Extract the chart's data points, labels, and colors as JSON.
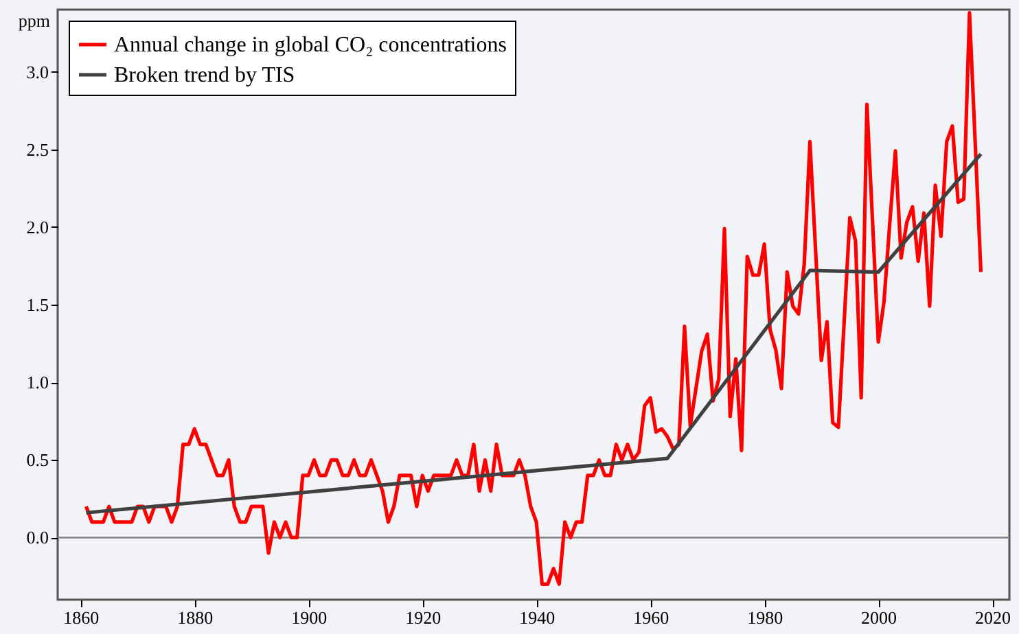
{
  "chart_data": {
    "type": "line",
    "ylabel": "ppm",
    "xlim": [
      1856,
      2023
    ],
    "ylim": [
      -0.4,
      3.4
    ],
    "xticks": [
      1860,
      1880,
      1900,
      1920,
      1940,
      1960,
      1980,
      2000,
      2020
    ],
    "yticks": [
      {
        "value": 0,
        "label": "0.0"
      },
      {
        "value": 0.5,
        "label": "0.5"
      },
      {
        "value": 1,
        "label": "1.0"
      },
      {
        "value": 1.5,
        "label": "1.5"
      },
      {
        "value": 2,
        "label": "2.0"
      },
      {
        "value": 2.5,
        "label": "2.5"
      },
      {
        "value": 3,
        "label": "3.0"
      }
    ],
    "grid": false,
    "legend": "top left",
    "line_style": "solid",
    "ref_lines": [
      {
        "axis": "y",
        "value": 0,
        "color": "#808080"
      }
    ],
    "series": [
      {
        "name": "Annual change in global CO₂ concentrations",
        "color": "#ff0000",
        "x": [
          1861,
          1862,
          1863,
          1864,
          1865,
          1866,
          1867,
          1868,
          1869,
          1870,
          1871,
          1872,
          1873,
          1874,
          1875,
          1876,
          1877,
          1878,
          1879,
          1880,
          1881,
          1882,
          1883,
          1884,
          1885,
          1886,
          1887,
          1888,
          1889,
          1890,
          1891,
          1892,
          1893,
          1894,
          1895,
          1896,
          1897,
          1898,
          1899,
          1900,
          1901,
          1902,
          1903,
          1904,
          1905,
          1906,
          1907,
          1908,
          1909,
          1910,
          1911,
          1912,
          1913,
          1914,
          1915,
          1916,
          1917,
          1918,
          1919,
          1920,
          1921,
          1922,
          1923,
          1924,
          1925,
          1926,
          1927,
          1928,
          1929,
          1930,
          1931,
          1932,
          1933,
          1934,
          1935,
          1936,
          1937,
          1938,
          1939,
          1940,
          1941,
          1942,
          1943,
          1944,
          1945,
          1946,
          1947,
          1948,
          1949,
          1950,
          1951,
          1952,
          1953,
          1954,
          1955,
          1956,
          1957,
          1958,
          1959,
          1960,
          1961,
          1962,
          1963,
          1964,
          1965,
          1966,
          1967,
          1969,
          1970,
          1971,
          1972,
          1973,
          1974,
          1975,
          1976,
          1977,
          1978,
          1979,
          1980,
          1981,
          1982,
          1983,
          1984,
          1985,
          1986,
          1987,
          1988,
          1990,
          1991,
          1992,
          1993,
          1995,
          1996,
          1997,
          1998,
          2000,
          2001,
          2002,
          2003,
          2004,
          2005,
          2006,
          2007,
          2008,
          2009,
          2010,
          2011,
          2012,
          2013,
          2014,
          2015,
          2016,
          2018
        ],
        "values": [
          0.2,
          0.1,
          0.1,
          0.1,
          0.2,
          0.1,
          0.1,
          0.1,
          0.1,
          0.2,
          0.2,
          0.1,
          0.2,
          0.2,
          0.2,
          0.1,
          0.2,
          0.6,
          0.6,
          0.7,
          0.6,
          0.6,
          0.5,
          0.4,
          0.4,
          0.5,
          0.2,
          0.1,
          0.1,
          0.2,
          0.2,
          0.2,
          -0.1,
          0.1,
          0.0,
          0.1,
          0.0,
          0.0,
          0.4,
          0.4,
          0.5,
          0.4,
          0.4,
          0.5,
          0.5,
          0.4,
          0.4,
          0.5,
          0.4,
          0.4,
          0.5,
          0.4,
          0.3,
          0.1,
          0.2,
          0.4,
          0.4,
          0.4,
          0.2,
          0.4,
          0.3,
          0.4,
          0.4,
          0.4,
          0.4,
          0.5,
          0.4,
          0.4,
          0.6,
          0.3,
          0.5,
          0.3,
          0.6,
          0.4,
          0.4,
          0.4,
          0.5,
          0.4,
          0.2,
          0.1,
          -0.3,
          -0.3,
          -0.2,
          -0.3,
          0.1,
          0.0,
          0.1,
          0.1,
          0.4,
          0.4,
          0.5,
          0.4,
          0.4,
          0.6,
          0.5,
          0.6,
          0.5,
          0.55,
          0.85,
          0.9,
          0.68,
          0.7,
          0.65,
          0.57,
          0.6,
          1.36,
          0.72,
          1.2,
          1.31,
          0.88,
          1.02,
          1.99,
          0.78,
          1.15,
          0.56,
          1.81,
          1.69,
          1.69,
          1.89,
          1.34,
          1.21,
          0.96,
          1.71,
          1.49,
          1.44,
          1.76,
          2.55,
          1.14,
          1.39,
          0.74,
          0.71,
          2.06,
          1.91,
          0.9,
          2.79,
          1.26,
          1.52,
          2.02,
          2.49,
          1.8,
          2.03,
          2.13,
          1.78,
          2.09,
          1.49,
          2.27,
          1.94,
          2.55,
          2.65,
          2.16,
          2.18,
          3.38,
          1.71
        ]
      },
      {
        "name": "Broken trend by TIS",
        "color": "#404040",
        "x": [
          1861,
          1963,
          1988,
          2000,
          2018
        ],
        "values": [
          0.16,
          0.51,
          1.72,
          1.71,
          2.47
        ]
      }
    ]
  }
}
